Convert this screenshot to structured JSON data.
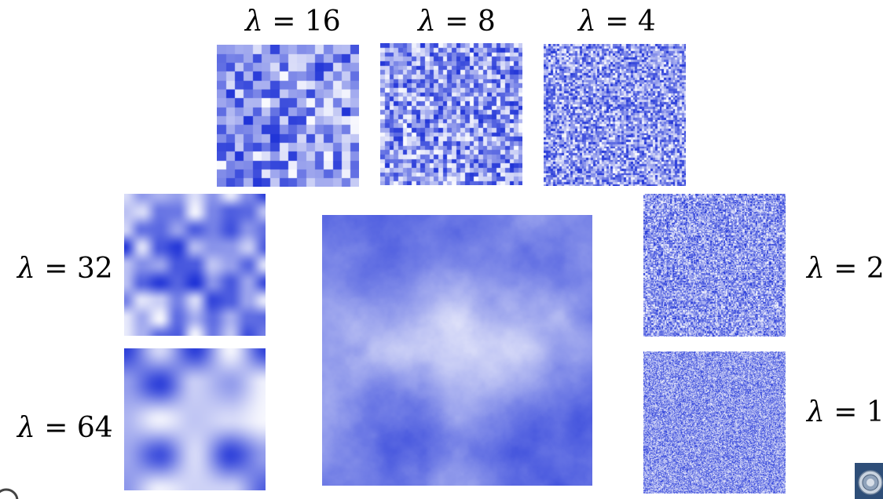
{
  "diagram": {
    "symbol": "λ",
    "equals": " = ",
    "octaves": [
      {
        "id": "16",
        "value": "16",
        "scale": 16
      },
      {
        "id": "8",
        "value": "8",
        "scale": 8
      },
      {
        "id": "4",
        "value": "4",
        "scale": 4
      },
      {
        "id": "32",
        "value": "32",
        "scale": 32
      },
      {
        "id": "64",
        "value": "64",
        "scale": 64
      },
      {
        "id": "2",
        "value": "2",
        "scale": 2
      },
      {
        "id": "1",
        "value": "1",
        "scale": 1
      }
    ]
  },
  "colors": {
    "noise_dark": "#1a2ed6",
    "noise_light": "#ffffff"
  },
  "icons": {
    "seal": "university-seal-icon",
    "corner": "circle-icon"
  }
}
